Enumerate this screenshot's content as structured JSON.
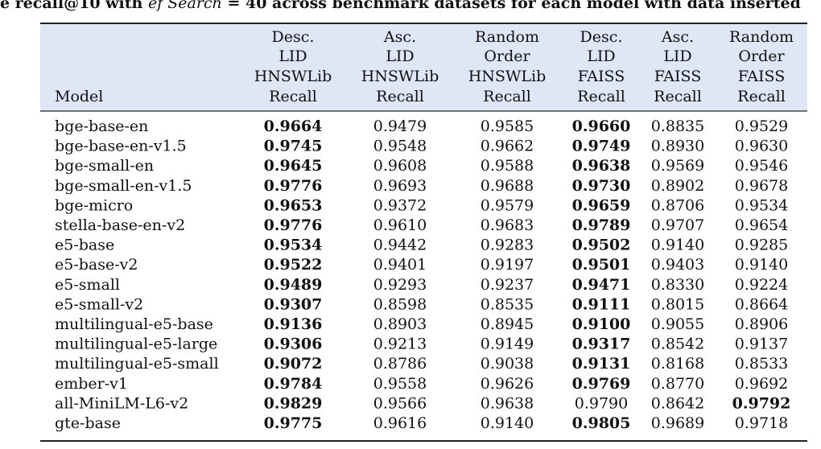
{
  "caption": {
    "before": "e recall@10 with ",
    "italic": "ef Search",
    "after": " = 40 across benchmark datasets for each model with data inserted"
  },
  "table": {
    "columns": [
      [
        "Model"
      ],
      [
        "Desc.",
        "LID",
        "HNSWLib",
        "Recall"
      ],
      [
        "Asc.",
        "LID",
        "HNSWLib",
        "Recall"
      ],
      [
        "Random",
        "Order",
        "HNSWLib",
        "Recall"
      ],
      [
        "Desc.",
        "LID",
        "FAISS",
        "Recall"
      ],
      [
        "Asc.",
        "LID",
        "FAISS",
        "Recall"
      ],
      [
        "Random",
        "Order",
        "FAISS",
        "Recall"
      ]
    ],
    "rows": [
      {
        "cells": [
          "bge-base-en",
          "0.9664",
          "0.9479",
          "0.9585",
          "0.9660",
          "0.8835",
          "0.9529"
        ],
        "bold": [
          1,
          4
        ]
      },
      {
        "cells": [
          "bge-base-en-v1.5",
          "0.9745",
          "0.9548",
          "0.9662",
          "0.9749",
          "0.8930",
          "0.9630"
        ],
        "bold": [
          1,
          4
        ]
      },
      {
        "cells": [
          "bge-small-en",
          "0.9645",
          "0.9608",
          "0.9588",
          "0.9638",
          "0.9569",
          "0.9546"
        ],
        "bold": [
          1,
          4
        ]
      },
      {
        "cells": [
          "bge-small-en-v1.5",
          "0.9776",
          "0.9693",
          "0.9688",
          "0.9730",
          "0.8902",
          "0.9678"
        ],
        "bold": [
          1,
          4
        ]
      },
      {
        "cells": [
          "bge-micro",
          "0.9653",
          "0.9372",
          "0.9579",
          "0.9659",
          "0.8706",
          "0.9534"
        ],
        "bold": [
          1,
          4
        ]
      },
      {
        "cells": [
          "stella-base-en-v2",
          "0.9776",
          "0.9610",
          "0.9683",
          "0.9789",
          "0.9707",
          "0.9654"
        ],
        "bold": [
          1,
          4
        ]
      },
      {
        "cells": [
          "e5-base",
          "0.9534",
          "0.9442",
          "0.9283",
          "0.9502",
          "0.9140",
          "0.9285"
        ],
        "bold": [
          1,
          4
        ]
      },
      {
        "cells": [
          "e5-base-v2",
          "0.9522",
          "0.9401",
          "0.9197",
          "0.9501",
          "0.9403",
          "0.9140"
        ],
        "bold": [
          1,
          4
        ]
      },
      {
        "cells": [
          "e5-small",
          "0.9489",
          "0.9293",
          "0.9237",
          "0.9471",
          "0.8330",
          "0.9224"
        ],
        "bold": [
          1,
          4
        ]
      },
      {
        "cells": [
          "e5-small-v2",
          "0.9307",
          "0.8598",
          "0.8535",
          "0.9111",
          "0.8015",
          "0.8664"
        ],
        "bold": [
          1,
          4
        ]
      },
      {
        "cells": [
          "multilingual-e5-base",
          "0.9136",
          "0.8903",
          "0.8945",
          "0.9100",
          "0.9055",
          "0.8906"
        ],
        "bold": [
          1,
          4
        ]
      },
      {
        "cells": [
          "multilingual-e5-large",
          "0.9306",
          "0.9213",
          "0.9149",
          "0.9317",
          "0.8542",
          "0.9137"
        ],
        "bold": [
          1,
          4
        ]
      },
      {
        "cells": [
          "multilingual-e5-small",
          "0.9072",
          "0.8786",
          "0.9038",
          "0.9131",
          "0.8168",
          "0.8533"
        ],
        "bold": [
          1,
          4
        ]
      },
      {
        "cells": [
          "ember-v1",
          "0.9784",
          "0.9558",
          "0.9626",
          "0.9769",
          "0.8770",
          "0.9692"
        ],
        "bold": [
          1,
          4
        ]
      },
      {
        "cells": [
          "all-MiniLM-L6-v2",
          "0.9829",
          "0.9566",
          "0.9638",
          "0.9790",
          "0.8642",
          "0.9792"
        ],
        "bold": [
          1,
          6
        ]
      },
      {
        "cells": [
          "gte-base",
          "0.9775",
          "0.9616",
          "0.9140",
          "0.9805",
          "0.9689",
          "0.9718"
        ],
        "bold": [
          1,
          4
        ]
      }
    ]
  }
}
